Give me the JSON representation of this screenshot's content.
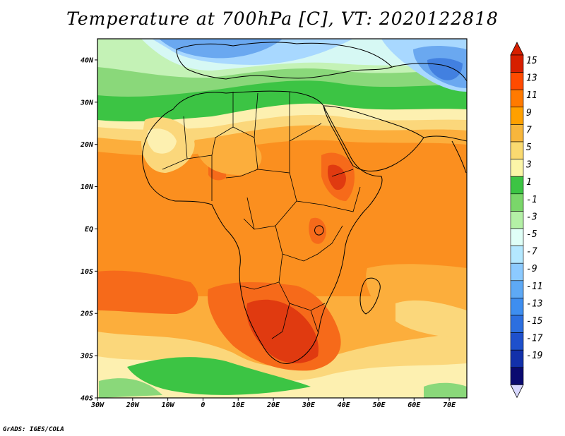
{
  "title": "Temperature at 700hPa [C], VT: 2020122818",
  "credit": "GrADS: IGES/COLA",
  "map": {
    "lat_labels": [
      "40N",
      "30N",
      "20N",
      "10N",
      "EQ",
      "10S",
      "20S",
      "30S",
      "40S"
    ],
    "lon_labels": [
      "30W",
      "20W",
      "10W",
      "0",
      "10E",
      "20E",
      "30E",
      "40E",
      "50E",
      "60E",
      "70E"
    ],
    "lat_range": [
      -40,
      45
    ],
    "lon_range": [
      -30,
      75
    ]
  },
  "colorbar": {
    "labels": [
      "15",
      "13",
      "11",
      "9",
      "7",
      "5",
      "3",
      "1",
      "-1",
      "-3",
      "-5",
      "-7",
      "-9",
      "-11",
      "-13",
      "-15",
      "-17",
      "-19"
    ],
    "colors": [
      "#d71f00",
      "#ff4b00",
      "#ff7a00",
      "#ffa000",
      "#f7b63c",
      "#fada70",
      "#fcf6a8",
      "#3cc444",
      "#7ad66a",
      "#b4f0a6",
      "#e0fff7",
      "#b4e8ff",
      "#8ccaff",
      "#5ea9f5",
      "#3e8ef0",
      "#2c6fe0",
      "#1e50cc",
      "#1230aa",
      "#0a0a70",
      "#d8d8ff"
    ],
    "top_arrow_color": "#d71f00",
    "bottom_arrow_color": "#d8d8ff"
  },
  "fill_colors": {
    "deep_red": "#e03a10",
    "red_orange": "#f66a1a",
    "orange": "#fb8f1f",
    "light_orange": "#fcae3c",
    "pale_yellow": "#fbd77b",
    "cream": "#fdf0b0",
    "green": "#3cc444",
    "light_green": "#8ad87a",
    "pale_green": "#c4f2b6",
    "cyan": "#d6f8f4",
    "light_blue": "#a8d8ff",
    "blue": "#6aa8f0",
    "dark_blue": "#4280e0"
  }
}
